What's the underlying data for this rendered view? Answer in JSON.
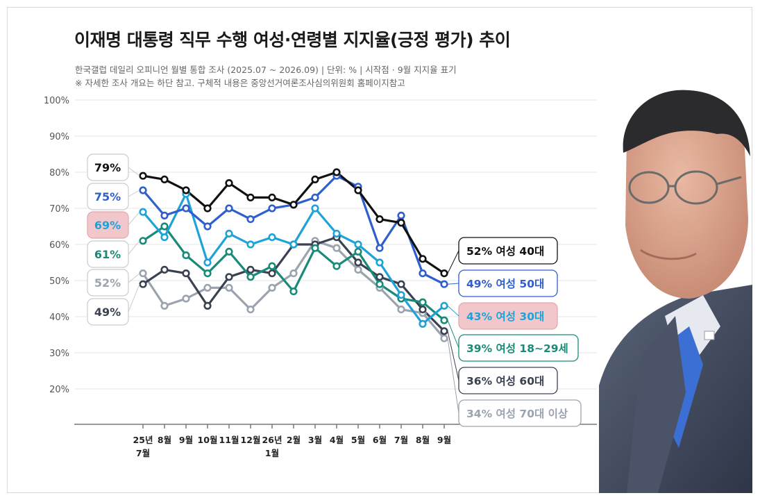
{
  "chart_data": {
    "type": "line",
    "title": "이재명 대통령 직무 수행 여성·연령별 지지율(긍정 평가) 추이",
    "subtitle": "한국갤럽 데일리 오피니언 월별 통합 조사 (2025.07 ~ 2026.09) | 단위: % | 시작점 · 9월 지지율 표기",
    "note": "※ 자세한 조사 개요는 하단 참고. 구체적 내용은 중앙선거여론조사심의위원회 홈페이지참고",
    "categories": [
      [
        "25년",
        "7월"
      ],
      [
        "8월"
      ],
      [
        "9월"
      ],
      [
        "10월"
      ],
      [
        "11월"
      ],
      [
        "12월"
      ],
      [
        "26년",
        "1월"
      ],
      [
        "2월"
      ],
      [
        "3월"
      ],
      [
        "4월"
      ],
      [
        "5월"
      ],
      [
        "6월"
      ],
      [
        "7월"
      ],
      [
        "8월"
      ],
      [
        "9월"
      ]
    ],
    "ylim": [
      10,
      100
    ],
    "yticks": [
      "100%",
      "90%",
      "80%",
      "70%",
      "60%",
      "50%",
      "40%",
      "30%",
      "20%"
    ],
    "grid": true,
    "series": [
      {
        "name": "여성 70대 이상",
        "color": "#9aa3ae",
        "values": [
          52,
          43,
          45,
          48,
          48,
          42,
          48,
          52,
          61,
          59,
          53,
          48,
          42,
          41,
          34
        ],
        "start_label": "52%",
        "end_label": "34% 여성 70대 이상"
      },
      {
        "name": "여성 60대",
        "color": "#3a4150",
        "values": [
          49,
          53,
          52,
          43,
          51,
          53,
          52,
          60,
          60,
          62,
          55,
          51,
          49,
          42,
          36
        ],
        "start_label": "49%",
        "end_label": "36% 여성 60대"
      },
      {
        "name": "여성 18~29세",
        "color": "#1a8a78",
        "values": [
          61,
          65,
          57,
          52,
          58,
          51,
          54,
          47,
          59,
          54,
          58,
          49,
          45,
          44,
          39
        ],
        "start_label": "61%",
        "end_label": "39% 여성 18~29세"
      },
      {
        "name": "여성 30대",
        "color": "#1ea3d8",
        "values": [
          69,
          62,
          74,
          55,
          63,
          60,
          62,
          60,
          70,
          63,
          60,
          55,
          46,
          38,
          43
        ],
        "start_label": "69%",
        "end_label": "43% 여성 30대"
      },
      {
        "name": "여성 50대",
        "color": "#2e5fcc",
        "values": [
          75,
          68,
          70,
          65,
          70,
          67,
          70,
          71,
          73,
          79,
          76,
          59,
          68,
          52,
          49
        ],
        "start_label": "75%",
        "end_label": "49% 여성 50대"
      },
      {
        "name": "여성 40대",
        "color": "#111111",
        "values": [
          79,
          78,
          75,
          70,
          77,
          73,
          73,
          71,
          78,
          80,
          75,
          67,
          66,
          56,
          52
        ],
        "start_label": "79%",
        "end_label": "52% 여성 40대"
      }
    ]
  }
}
